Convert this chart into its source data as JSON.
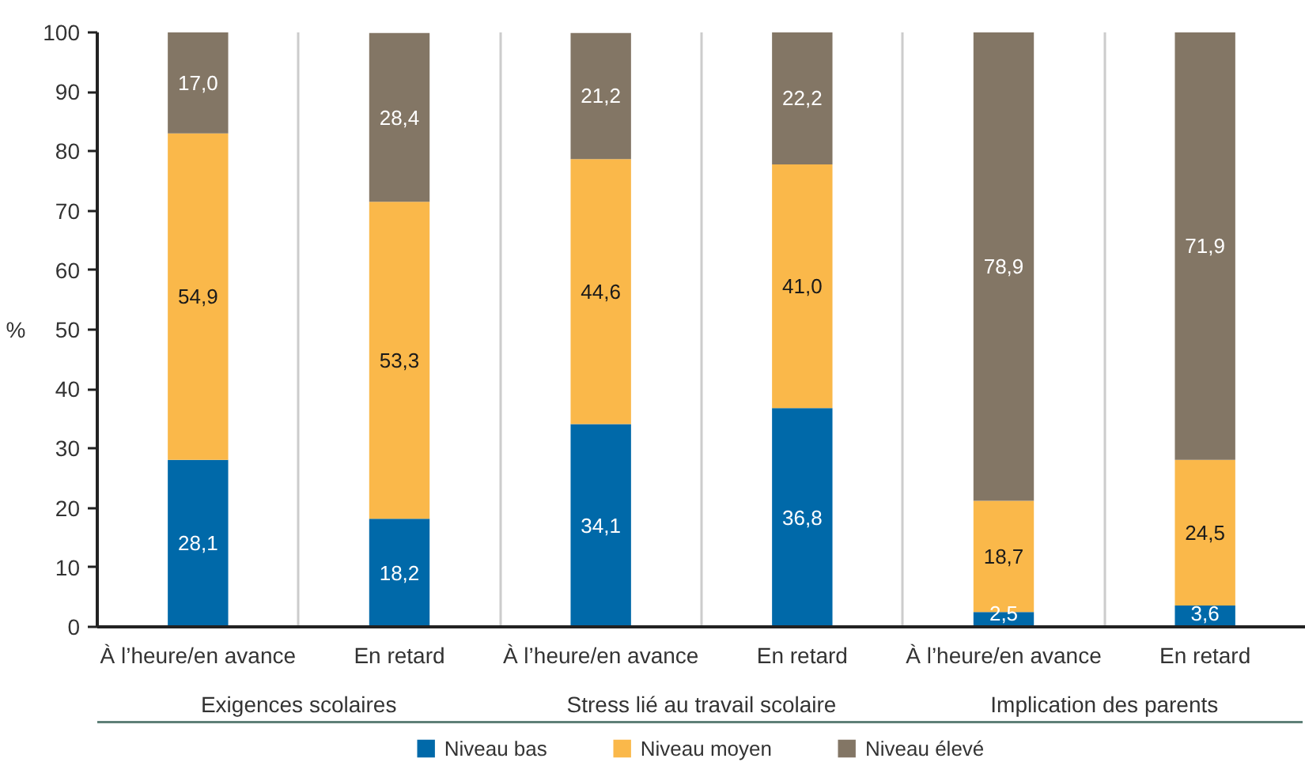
{
  "chart_data": {
    "type": "bar",
    "stacked": true,
    "ylabel": "%",
    "categories": [
      "À l’heure/en avance",
      "En retard",
      "À l’heure/en avance",
      "En retard",
      "À l’heure/en avance",
      "En retard"
    ],
    "series": [
      {
        "name": "Niveau bas",
        "color": "#0069a9",
        "values": [
          28.1,
          18.2,
          34.1,
          36.8,
          2.5,
          3.6
        ],
        "value_labels": [
          "28,1",
          "18,2",
          "34,1",
          "36,8",
          "2,5",
          "3,6"
        ]
      },
      {
        "name": "Niveau moyen",
        "color": "#fab84a",
        "values": [
          54.9,
          53.3,
          44.6,
          41.0,
          18.7,
          24.5
        ],
        "value_labels": [
          "54,9",
          "53,3",
          "44,6",
          "41,0",
          "18,7",
          "24,5"
        ]
      },
      {
        "name": "Niveau élevé",
        "color": "#837665",
        "values": [
          17.0,
          28.4,
          21.2,
          22.2,
          78.9,
          71.9
        ],
        "value_labels": [
          "17,0",
          "28,4",
          "21,2",
          "22,2",
          "78,9",
          "71,9"
        ]
      }
    ],
    "ylim": [
      0,
      100
    ],
    "yticks": [
      0,
      10,
      20,
      30,
      40,
      50,
      60,
      70,
      80,
      90,
      100
    ],
    "grid": "x",
    "legend": "bottom",
    "annotations": [
      "Exigences scolaires",
      "Stress lié au travail scolaire",
      "Implication des parents"
    ]
  }
}
